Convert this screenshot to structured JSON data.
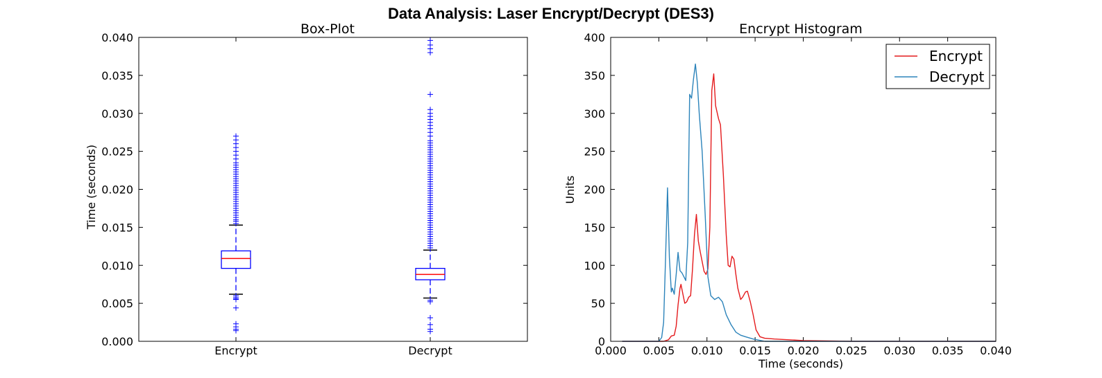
{
  "suptitle": "Data Analysis: Laser Encrypt/Decrypt (DES3)",
  "chart_data": [
    {
      "type": "box",
      "title": "Box-Plot",
      "xlabel": "",
      "ylabel": "Time (seconds)",
      "ylim": [
        0.0,
        0.04
      ],
      "yticks": [
        "0.000",
        "0.005",
        "0.010",
        "0.015",
        "0.020",
        "0.025",
        "0.030",
        "0.035",
        "0.040"
      ],
      "categories": [
        "Encrypt",
        "Decrypt"
      ],
      "colors": {
        "box": "#0000ff",
        "median": "#ff0000"
      },
      "boxes": [
        {
          "name": "Encrypt",
          "whisker_low": 0.0062,
          "q1": 0.0096,
          "median": 0.0109,
          "q3": 0.0119,
          "whisker_high": 0.0153,
          "outliers_high": [
            0.0155,
            0.0158,
            0.016,
            0.0163,
            0.0166,
            0.0169,
            0.0172,
            0.0175,
            0.0178,
            0.0181,
            0.0184,
            0.0187,
            0.019,
            0.0193,
            0.0196,
            0.0199,
            0.0202,
            0.0205,
            0.0208,
            0.0211,
            0.0214,
            0.0217,
            0.022,
            0.0223,
            0.0226,
            0.0229,
            0.0232,
            0.0235,
            0.024,
            0.0245,
            0.025,
            0.0255,
            0.026,
            0.0265,
            0.027
          ],
          "outliers_low": [
            0.006,
            0.0058,
            0.0056,
            0.0055,
            0.0044,
            0.0023,
            0.0019,
            0.0016,
            0.0014
          ]
        },
        {
          "name": "Decrypt",
          "whisker_low": 0.0057,
          "q1": 0.0081,
          "median": 0.0088,
          "q3": 0.0096,
          "whisker_high": 0.012,
          "outliers_high": [
            0.0123,
            0.0126,
            0.0129,
            0.0132,
            0.0135,
            0.0138,
            0.0141,
            0.0144,
            0.0147,
            0.015,
            0.0153,
            0.0156,
            0.0159,
            0.0162,
            0.0165,
            0.0168,
            0.0171,
            0.0174,
            0.0177,
            0.018,
            0.0183,
            0.0186,
            0.0189,
            0.0192,
            0.0195,
            0.0198,
            0.0201,
            0.0204,
            0.0207,
            0.021,
            0.0213,
            0.0216,
            0.0219,
            0.0222,
            0.0225,
            0.0228,
            0.0231,
            0.0234,
            0.0237,
            0.024,
            0.0243,
            0.0246,
            0.0249,
            0.0252,
            0.0255,
            0.0258,
            0.0261,
            0.0264,
            0.027,
            0.0275,
            0.028,
            0.0284,
            0.0288,
            0.0292,
            0.0296,
            0.03,
            0.0305,
            0.0325,
            0.038,
            0.0385,
            0.039,
            0.0396
          ],
          "outliers_low": [
            0.0054,
            0.0052,
            0.0031,
            0.0022,
            0.0016,
            0.0013
          ]
        }
      ]
    },
    {
      "type": "line",
      "title": "Encrypt Histogram",
      "xlabel": "Time (seconds)",
      "ylabel": "Units",
      "xlim": [
        0.0,
        0.04
      ],
      "ylim": [
        0,
        400
      ],
      "xticks": [
        "0.000",
        "0.005",
        "0.010",
        "0.015",
        "0.020",
        "0.025",
        "0.030",
        "0.035",
        "0.040"
      ],
      "yticks": [
        "0",
        "50",
        "100",
        "150",
        "200",
        "250",
        "300",
        "350",
        "400"
      ],
      "legend": {
        "loc": "upper right"
      },
      "series": [
        {
          "name": "Encrypt",
          "color": "#e41a1c",
          "points": [
            [
              0.0012,
              0
            ],
            [
              0.0055,
              0
            ],
            [
              0.006,
              2
            ],
            [
              0.0063,
              7
            ],
            [
              0.0066,
              8
            ],
            [
              0.0068,
              20
            ],
            [
              0.007,
              48
            ],
            [
              0.0072,
              70
            ],
            [
              0.0073,
              75
            ],
            [
              0.0075,
              62
            ],
            [
              0.0077,
              50
            ],
            [
              0.0079,
              52
            ],
            [
              0.0081,
              58
            ],
            [
              0.0083,
              60
            ],
            [
              0.0085,
              95
            ],
            [
              0.0087,
              140
            ],
            [
              0.0089,
              167
            ],
            [
              0.0091,
              132
            ],
            [
              0.0093,
              118
            ],
            [
              0.0095,
              105
            ],
            [
              0.0097,
              92
            ],
            [
              0.0099,
              88
            ],
            [
              0.0101,
              95
            ],
            [
              0.0103,
              150
            ],
            [
              0.0105,
              330
            ],
            [
              0.0107,
              352
            ],
            [
              0.0109,
              310
            ],
            [
              0.0112,
              293
            ],
            [
              0.0114,
              285
            ],
            [
              0.0117,
              220
            ],
            [
              0.012,
              140
            ],
            [
              0.0122,
              100
            ],
            [
              0.0124,
              98
            ],
            [
              0.0126,
              112
            ],
            [
              0.0128,
              108
            ],
            [
              0.013,
              88
            ],
            [
              0.0132,
              70
            ],
            [
              0.0135,
              55
            ],
            [
              0.0137,
              58
            ],
            [
              0.014,
              65
            ],
            [
              0.0142,
              66
            ],
            [
              0.0145,
              52
            ],
            [
              0.0148,
              35
            ],
            [
              0.0151,
              15
            ],
            [
              0.0155,
              6
            ],
            [
              0.016,
              4
            ],
            [
              0.017,
              3
            ],
            [
              0.02,
              1
            ],
            [
              0.025,
              0
            ],
            [
              0.04,
              0
            ]
          ]
        },
        {
          "name": "Decrypt",
          "color": "#2b83ba",
          "points": [
            [
              0.0012,
              0
            ],
            [
              0.005,
              0
            ],
            [
              0.0053,
              5
            ],
            [
              0.0055,
              25
            ],
            [
              0.0057,
              110
            ],
            [
              0.0059,
              202
            ],
            [
              0.0061,
              110
            ],
            [
              0.0063,
              65
            ],
            [
              0.0064,
              70
            ],
            [
              0.0066,
              62
            ],
            [
              0.0068,
              88
            ],
            [
              0.007,
              117
            ],
            [
              0.0072,
              93
            ],
            [
              0.0074,
              90
            ],
            [
              0.0076,
              85
            ],
            [
              0.0078,
              80
            ],
            [
              0.008,
              130
            ],
            [
              0.0082,
              325
            ],
            [
              0.0084,
              320
            ],
            [
              0.0086,
              345
            ],
            [
              0.0088,
              365
            ],
            [
              0.009,
              340
            ],
            [
              0.0092,
              300
            ],
            [
              0.0095,
              250
            ],
            [
              0.0098,
              170
            ],
            [
              0.0101,
              85
            ],
            [
              0.0104,
              60
            ],
            [
              0.0108,
              55
            ],
            [
              0.0112,
              58
            ],
            [
              0.0116,
              52
            ],
            [
              0.012,
              35
            ],
            [
              0.0125,
              22
            ],
            [
              0.013,
              12
            ],
            [
              0.0135,
              8
            ],
            [
              0.014,
              6
            ],
            [
              0.0148,
              3
            ],
            [
              0.016,
              0
            ],
            [
              0.04,
              0
            ]
          ]
        }
      ]
    }
  ]
}
